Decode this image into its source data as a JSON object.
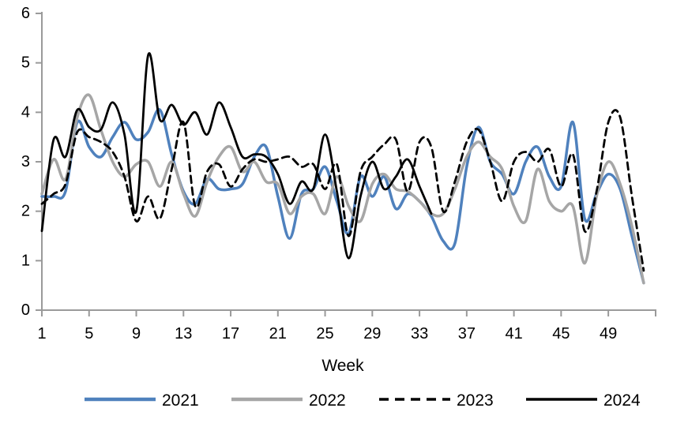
{
  "chart_data": {
    "type": "line",
    "title": "",
    "xlabel": "Week",
    "ylabel": "",
    "smoothed": true,
    "grid": false,
    "legend_position": "bottom",
    "ylim": [
      0,
      6
    ],
    "y_ticks": [
      0,
      1,
      2,
      3,
      4,
      5,
      6
    ],
    "x_ticks": [
      1,
      5,
      9,
      13,
      17,
      21,
      25,
      29,
      33,
      37,
      41,
      45,
      49
    ],
    "x_range": [
      1,
      52
    ],
    "x": [
      1,
      2,
      3,
      4,
      5,
      6,
      7,
      8,
      9,
      10,
      11,
      12,
      13,
      14,
      15,
      16,
      17,
      18,
      19,
      20,
      21,
      22,
      23,
      24,
      25,
      26,
      27,
      28,
      29,
      30,
      31,
      32,
      33,
      34,
      35,
      36,
      37,
      38,
      39,
      40,
      41,
      42,
      43,
      44,
      45,
      46,
      47,
      48,
      49,
      50,
      51,
      52
    ],
    "series": [
      {
        "name": "2021",
        "color": "#4F81BD",
        "dash": "solid",
        "values": [
          2.3,
          2.3,
          2.4,
          3.8,
          3.3,
          3.1,
          3.5,
          3.8,
          3.45,
          3.6,
          4.05,
          3.15,
          2.4,
          2.15,
          2.65,
          2.45,
          2.45,
          2.55,
          3.1,
          3.3,
          2.3,
          1.45,
          2.35,
          2.45,
          2.9,
          2.2,
          1.55,
          2.7,
          2.3,
          2.7,
          2.05,
          2.35,
          2.2,
          1.9,
          1.4,
          1.35,
          2.9,
          3.7,
          3.0,
          2.75,
          2.35,
          3.0,
          3.3,
          2.7,
          2.5,
          3.8,
          1.85,
          2.35,
          2.75,
          2.45,
          1.5,
          0.55
        ]
      },
      {
        "name": "2022",
        "color": "#A6A6A6",
        "dash": "solid",
        "values": [
          2.35,
          3.05,
          2.65,
          3.9,
          4.35,
          3.65,
          3.0,
          2.7,
          2.95,
          3.0,
          2.5,
          3.0,
          2.35,
          1.9,
          2.6,
          3.1,
          3.3,
          2.8,
          3.0,
          2.6,
          2.55,
          1.95,
          2.3,
          2.35,
          1.95,
          2.7,
          2.1,
          1.8,
          2.55,
          2.75,
          2.45,
          2.4,
          2.2,
          1.95,
          1.95,
          2.45,
          3.1,
          3.4,
          3.1,
          2.85,
          2.1,
          1.8,
          2.85,
          2.2,
          2.0,
          2.1,
          0.95,
          2.3,
          3.0,
          2.55,
          1.7,
          0.55
        ]
      },
      {
        "name": "2023",
        "color": "#000000",
        "dash": "dashed",
        "values": [
          2.15,
          2.35,
          2.55,
          3.6,
          3.5,
          3.4,
          3.2,
          2.7,
          1.8,
          2.3,
          1.85,
          2.85,
          3.8,
          2.1,
          2.8,
          2.95,
          2.5,
          2.85,
          3.05,
          3.0,
          3.05,
          3.1,
          2.9,
          2.95,
          2.45,
          2.95,
          1.5,
          2.8,
          3.1,
          3.35,
          3.45,
          2.4,
          3.4,
          3.3,
          2.0,
          2.6,
          3.4,
          3.65,
          3.0,
          2.2,
          3.0,
          3.2,
          3.0,
          3.25,
          2.5,
          3.15,
          1.6,
          2.4,
          3.8,
          3.9,
          2.3,
          0.8
        ]
      },
      {
        "name": "2024",
        "color": "#000000",
        "dash": "solid",
        "values": [
          1.6,
          3.45,
          3.1,
          4.05,
          3.7,
          3.65,
          4.2,
          3.55,
          2.0,
          5.15,
          3.85,
          4.15,
          3.75,
          4.0,
          3.55,
          4.2,
          3.7,
          3.1,
          3.15,
          3.1,
          2.75,
          2.15,
          2.6,
          2.45,
          3.55,
          2.4,
          1.05,
          2.3,
          3.0,
          2.45,
          2.7,
          3.05,
          2.5,
          1.95
        ]
      }
    ]
  },
  "colors": {
    "axis": "#9A9A9A",
    "background": "#FFFFFF",
    "text": "#000000",
    "series_blue": "#4F81BD",
    "series_gray": "#A6A6A6",
    "series_black": "#000000"
  },
  "legend": {
    "items": [
      "2021",
      "2022",
      "2023",
      "2024"
    ]
  }
}
